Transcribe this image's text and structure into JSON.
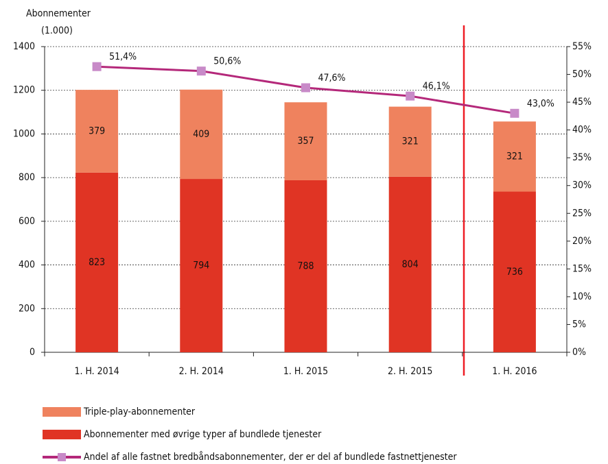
{
  "chart_data": {
    "type": "bar",
    "stacked": true,
    "y_axis_label": "Abonnementer",
    "y_axis_unit": "(1.000)",
    "categories": [
      "1. H. 2014",
      "2. H. 2014",
      "1. H. 2015",
      "2. H. 2015",
      "1. H. 2016"
    ],
    "series": [
      {
        "name": "Triple-play-abonnementer",
        "color": "#ef825e",
        "values": [
          379,
          409,
          357,
          321,
          321
        ]
      },
      {
        "name": "Abonnementer med øvrige typer af bundlede tjenester",
        "color": "#e03424",
        "values": [
          823,
          794,
          788,
          804,
          736
        ]
      },
      {
        "name": "Andel af alle fastnet bredbåndsabonnementer, der er del af bundlede fastnettjenester",
        "type": "line",
        "axis": "y2",
        "color": "#b4287a",
        "marker_color": "#c88ac8",
        "values": [
          51.4,
          50.6,
          47.6,
          46.1,
          43.0
        ],
        "value_labels": [
          "51,4%",
          "50,6%",
          "47,6%",
          "46,1%",
          "43,0%"
        ]
      }
    ],
    "ylim": [
      0,
      1400
    ],
    "yticks": [
      0,
      200,
      400,
      600,
      800,
      1000,
      1200,
      1400
    ],
    "y2lim": [
      0,
      55
    ],
    "y2ticks": [
      {
        "value": 0,
        "label": "0%"
      },
      {
        "value": 5,
        "label": "5%"
      },
      {
        "value": 10,
        "label": "10%"
      },
      {
        "value": 15,
        "label": "15%"
      },
      {
        "value": 20,
        "label": "20%"
      },
      {
        "value": 25,
        "label": "25%"
      },
      {
        "value": 30,
        "label": "30%"
      },
      {
        "value": 35,
        "label": "35%"
      },
      {
        "value": 40,
        "label": "40%"
      },
      {
        "value": 45,
        "label": "45%"
      },
      {
        "value": 50,
        "label": "50%"
      },
      {
        "value": 55,
        "label": "55%"
      }
    ],
    "grid": true
  }
}
